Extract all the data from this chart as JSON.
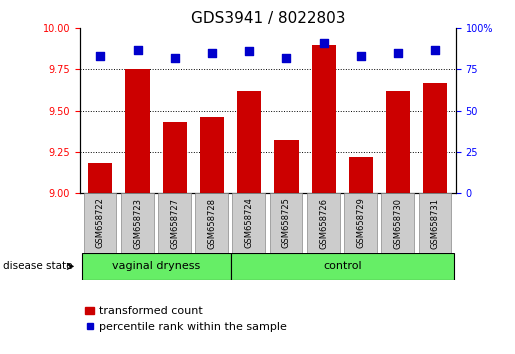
{
  "title": "GDS3941 / 8022803",
  "samples": [
    "GSM658722",
    "GSM658723",
    "GSM658727",
    "GSM658728",
    "GSM658724",
    "GSM658725",
    "GSM658726",
    "GSM658729",
    "GSM658730",
    "GSM658731"
  ],
  "bar_values": [
    9.18,
    9.75,
    9.43,
    9.46,
    9.62,
    9.32,
    9.9,
    9.22,
    9.62,
    9.67
  ],
  "percentile_values": [
    83,
    87,
    82,
    85,
    86,
    82,
    91,
    83,
    85,
    87
  ],
  "ylim_left": [
    9.0,
    10.0
  ],
  "ylim_right": [
    0,
    100
  ],
  "yticks_left": [
    9.0,
    9.25,
    9.5,
    9.75,
    10.0
  ],
  "yticks_right": [
    0,
    25,
    50,
    75,
    100
  ],
  "bar_color": "#cc0000",
  "percentile_color": "#0000cc",
  "group_labels": [
    "vaginal dryness",
    "control"
  ],
  "group_sizes": [
    4,
    6
  ],
  "group_color": "#66ee66",
  "background_color": "#ffffff",
  "title_fontsize": 11,
  "tick_label_fontsize": 7,
  "sample_fontsize": 6,
  "legend_fontsize": 8,
  "bar_width": 0.65,
  "percentile_marker_size": 30,
  "disease_state_label": "disease state"
}
